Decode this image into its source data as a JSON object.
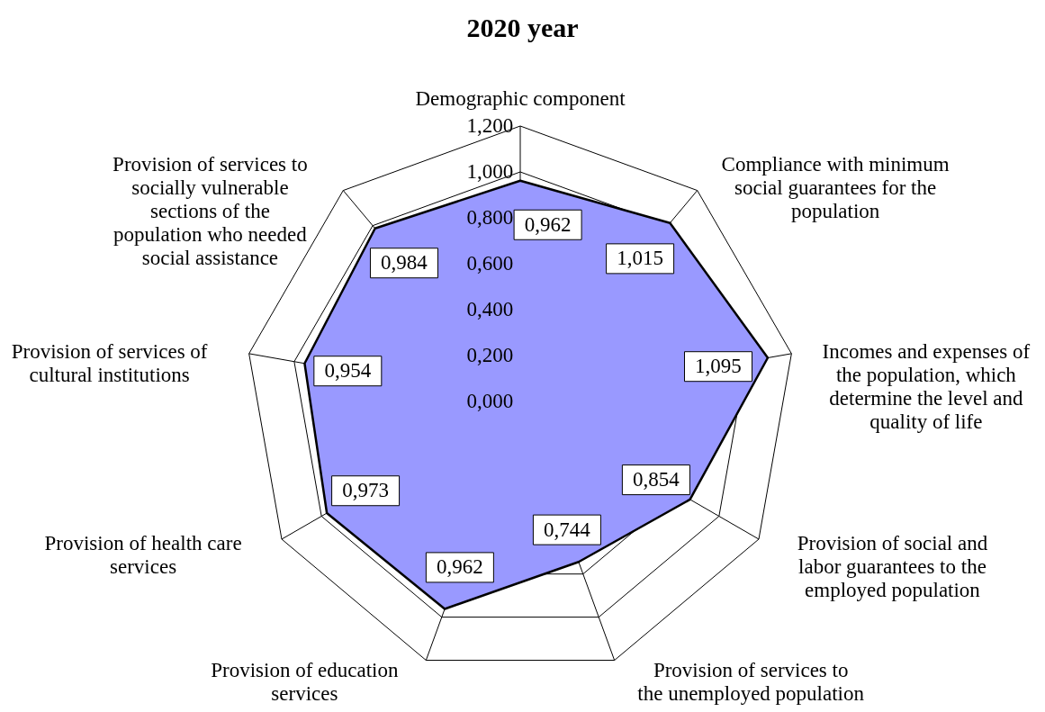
{
  "chart_data": {
    "type": "radar",
    "title": "2020 year",
    "categories": [
      "Demographic component",
      "Compliance with minimum social guarantees for the population",
      "Incomes and expenses of the population, which determine the level and quality of life",
      "Provision of social and labor guarantees to the employed population",
      "Provision of services to the unemployed population",
      "Provision of education services",
      "Provision of health care services",
      "Provision of services of cultural institutions",
      "Provision of services to socially vulnerable sections of the population who needed social assistance"
    ],
    "series": [
      {
        "color": "#9999ff",
        "values": [
          0.962,
          1.015,
          1.095,
          0.854,
          0.744,
          0.962,
          0.973,
          0.954,
          0.984
        ],
        "value_labels": [
          "0,962",
          "1,015",
          "1,095",
          "0,854",
          "0,744",
          "0,962",
          "0,973",
          "0,954",
          "0,984"
        ]
      }
    ],
    "ylim": [
      0,
      1.2
    ],
    "yticks": [
      {
        "value": 0,
        "label": "0,000"
      },
      {
        "value": 0.2,
        "label": "0,200"
      },
      {
        "value": 0.4,
        "label": "0,400"
      },
      {
        "value": 0.6,
        "label": "0,600"
      },
      {
        "value": 0.8,
        "label": "0,800"
      },
      {
        "value": 1.0,
        "label": "1,000"
      },
      {
        "value": 1.2,
        "label": "1,200"
      }
    ],
    "grid": true
  }
}
